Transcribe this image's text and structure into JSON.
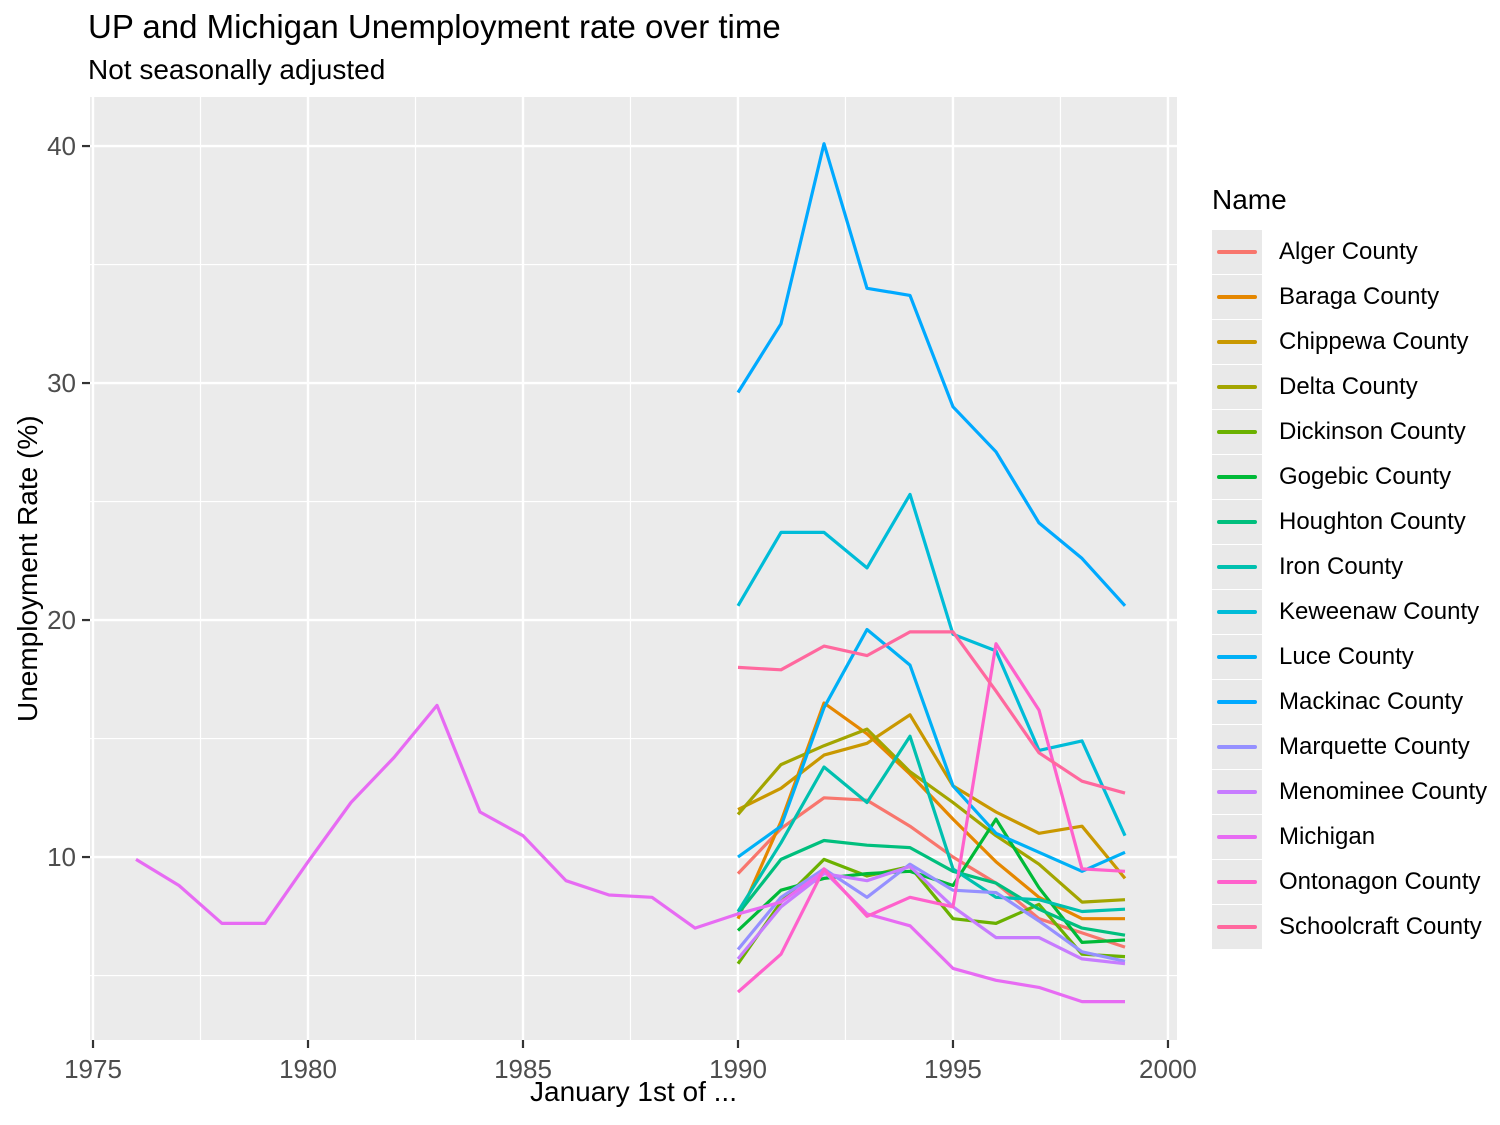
{
  "header": {
    "title": "UP and Michigan Unemployment rate over time",
    "subtitle": "Not seasonally adjusted"
  },
  "chart_data": {
    "type": "line",
    "title": "UP and Michigan Unemployment rate over time",
    "subtitle": "Not seasonally adjusted",
    "xlabel": "January 1st of ...",
    "ylabel": "Unemployment Rate (%)",
    "legend_title": "Name",
    "legend_position": "right",
    "grid": true,
    "panel_bg": "#EBEBEB",
    "grid_color": "#FFFFFF",
    "tick_label_color": "#4D4D4D",
    "tick_mark_color": "#333333",
    "xlim": [
      1974.93,
      2000.21
    ],
    "ylim": [
      2.28,
      42.07
    ],
    "x_ticks": [
      1975,
      1980,
      1985,
      1990,
      1995,
      2000
    ],
    "x_minor": [
      1977.5,
      1982.5,
      1987.5,
      1992.5,
      1997.5
    ],
    "y_ticks": [
      10,
      20,
      30,
      40
    ],
    "y_minor": [
      5,
      15,
      25,
      35
    ],
    "series": [
      {
        "name": "Alger County",
        "color": "#F8766D",
        "x": [
          1990,
          1991,
          1992,
          1993,
          1994,
          1995,
          1996,
          1997,
          1998,
          1999
        ],
        "values": [
          9.3,
          11.2,
          12.5,
          12.4,
          11.3,
          10.0,
          8.9,
          7.4,
          6.8,
          6.2
        ]
      },
      {
        "name": "Baraga County",
        "color": "#E58700",
        "x": [
          1990,
          1991,
          1992,
          1993,
          1994,
          1995,
          1996,
          1997,
          1998,
          1999
        ],
        "values": [
          7.4,
          11.5,
          16.5,
          15.2,
          13.5,
          11.6,
          9.8,
          8.3,
          7.4,
          7.4
        ]
      },
      {
        "name": "Chippewa County",
        "color": "#C99800",
        "x": [
          1990,
          1991,
          1992,
          1993,
          1994,
          1995,
          1996,
          1997,
          1998,
          1999
        ],
        "values": [
          12.0,
          12.9,
          14.3,
          14.8,
          16.0,
          13.0,
          11.9,
          11.0,
          11.3,
          9.1
        ]
      },
      {
        "name": "Delta County",
        "color": "#A3A500",
        "x": [
          1990,
          1991,
          1992,
          1993,
          1994,
          1995,
          1996,
          1997,
          1998,
          1999
        ],
        "values": [
          11.8,
          13.9,
          14.7,
          15.4,
          13.6,
          12.3,
          10.9,
          9.7,
          8.1,
          8.2
        ]
      },
      {
        "name": "Dickinson County",
        "color": "#6BB100",
        "x": [
          1990,
          1991,
          1992,
          1993,
          1994,
          1995,
          1996,
          1997,
          1998,
          1999
        ],
        "values": [
          5.5,
          8.1,
          9.9,
          9.2,
          9.6,
          7.4,
          7.2,
          8.0,
          5.9,
          5.8
        ]
      },
      {
        "name": "Gogebic County",
        "color": "#00BA38",
        "x": [
          1990,
          1991,
          1992,
          1993,
          1994,
          1995,
          1996,
          1997,
          1998,
          1999
        ],
        "values": [
          6.9,
          8.6,
          9.1,
          9.3,
          9.4,
          8.8,
          11.6,
          8.7,
          6.4,
          6.5
        ]
      },
      {
        "name": "Houghton County",
        "color": "#00BF7D",
        "x": [
          1990,
          1991,
          1992,
          1993,
          1994,
          1995,
          1996,
          1997,
          1998,
          1999
        ],
        "values": [
          7.6,
          9.9,
          10.7,
          10.5,
          10.4,
          9.4,
          8.9,
          7.8,
          7.0,
          6.7
        ]
      },
      {
        "name": "Iron County",
        "color": "#00C0AF",
        "x": [
          1990,
          1991,
          1992,
          1993,
          1994,
          1995,
          1996,
          1997,
          1998,
          1999
        ],
        "values": [
          7.7,
          10.6,
          13.8,
          12.3,
          15.1,
          9.5,
          8.3,
          8.2,
          7.7,
          7.8
        ]
      },
      {
        "name": "Keweenaw County",
        "color": "#00BCD8",
        "x": [
          1990,
          1991,
          1992,
          1993,
          1994,
          1995,
          1996,
          1997,
          1998,
          1999
        ],
        "values": [
          20.6,
          23.7,
          23.7,
          22.2,
          25.3,
          19.4,
          18.7,
          14.5,
          14.9,
          10.9
        ]
      },
      {
        "name": "Luce County",
        "color": "#00B0F6",
        "x": [
          1990,
          1991,
          1992,
          1993,
          1994,
          1995,
          1996,
          1997,
          1998,
          1999
        ],
        "values": [
          10.0,
          11.3,
          16.3,
          19.6,
          18.1,
          13.0,
          11.0,
          10.2,
          9.4,
          10.2
        ]
      },
      {
        "name": "Mackinac County",
        "color": "#00A9FF",
        "x": [
          1990,
          1991,
          1992,
          1993,
          1994,
          1995,
          1996,
          1997,
          1998,
          1999
        ],
        "values": [
          29.6,
          32.5,
          40.1,
          34.0,
          33.7,
          29.0,
          27.1,
          24.1,
          22.6,
          20.6
        ]
      },
      {
        "name": "Marquette County",
        "color": "#9590FF",
        "x": [
          1990,
          1991,
          1992,
          1993,
          1994,
          1995,
          1996,
          1997,
          1998,
          1999
        ],
        "values": [
          6.1,
          8.3,
          9.5,
          8.3,
          9.7,
          8.6,
          8.5,
          7.3,
          6.0,
          5.6
        ]
      },
      {
        "name": "Menominee County",
        "color": "#C77CFF",
        "x": [
          1990,
          1991,
          1992,
          1993,
          1994,
          1995,
          1996,
          1997,
          1998,
          1999
        ],
        "values": [
          5.7,
          7.9,
          9.3,
          9.0,
          9.6,
          7.9,
          6.6,
          6.6,
          5.7,
          5.5
        ]
      },
      {
        "name": "Michigan",
        "color": "#E76BF3",
        "x": [
          1976,
          1977,
          1978,
          1979,
          1980,
          1981,
          1982,
          1983,
          1984,
          1985,
          1986,
          1987,
          1988,
          1989,
          1990,
          1991,
          1992,
          1993,
          1994,
          1995,
          1996,
          1997,
          1998,
          1999
        ],
        "values": [
          9.9,
          8.8,
          7.2,
          7.2,
          9.8,
          12.3,
          14.2,
          16.4,
          11.9,
          10.9,
          9.0,
          8.4,
          8.3,
          7.0,
          7.6,
          8.1,
          9.4,
          7.6,
          7.1,
          5.3,
          4.8,
          4.5,
          3.9,
          3.9
        ]
      },
      {
        "name": "Ontonagon County",
        "color": "#FF61CC",
        "x": [
          1990,
          1991,
          1992,
          1993,
          1994,
          1995,
          1996,
          1997,
          1998,
          1999
        ],
        "values": [
          4.3,
          5.9,
          9.5,
          7.5,
          8.3,
          7.9,
          19.0,
          16.2,
          9.5,
          9.4
        ]
      },
      {
        "name": "Schoolcraft County",
        "color": "#FF689E",
        "x": [
          1990,
          1991,
          1992,
          1993,
          1994,
          1995,
          1996,
          1997,
          1998,
          1999
        ],
        "values": [
          18.0,
          17.9,
          18.9,
          18.5,
          19.5,
          19.5,
          17.0,
          14.4,
          13.2,
          12.7
        ]
      }
    ]
  }
}
